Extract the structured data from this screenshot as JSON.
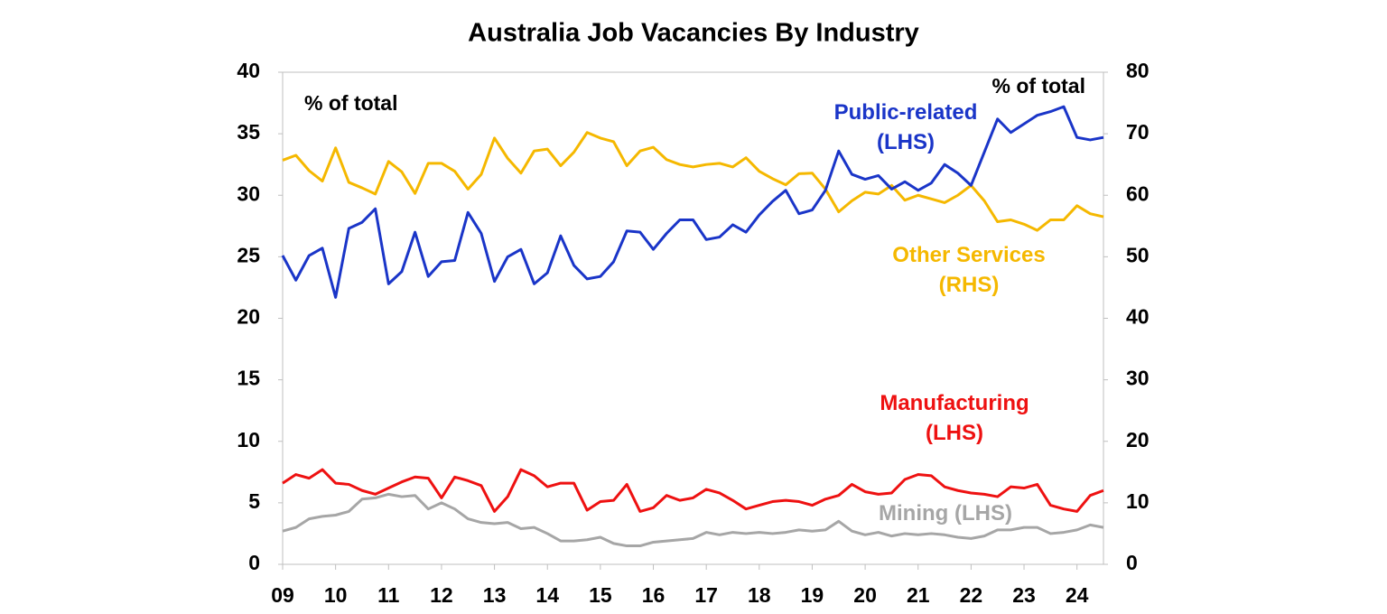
{
  "chart_data": {
    "type": "line",
    "title": "Australia Job Vacancies By Industry",
    "annotations": {
      "left_unit": "% of total",
      "right_unit": "% of total"
    },
    "x": [
      2009,
      2009.25,
      2009.5,
      2009.75,
      2010,
      2010.25,
      2010.5,
      2010.75,
      2011,
      2011.25,
      2011.5,
      2011.75,
      2012,
      2012.25,
      2012.5,
      2012.75,
      2013,
      2013.25,
      2013.5,
      2013.75,
      2014,
      2014.25,
      2014.5,
      2014.75,
      2015,
      2015.25,
      2015.5,
      2015.75,
      2016,
      2016.25,
      2016.5,
      2016.75,
      2017,
      2017.25,
      2017.5,
      2017.75,
      2018,
      2018.25,
      2018.5,
      2018.75,
      2019,
      2019.25,
      2019.5,
      2019.75,
      2020,
      2020.25,
      2020.5,
      2020.75,
      2021,
      2021.25,
      2021.5,
      2021.75,
      2022,
      2022.25,
      2022.5,
      2022.75,
      2023,
      2023.25,
      2023.5,
      2023.75,
      2024,
      2024.25,
      2024.5
    ],
    "xlim": [
      2009,
      2024.5
    ],
    "xticks": [
      {
        "value": 2009,
        "label": "09"
      },
      {
        "value": 2010,
        "label": "10"
      },
      {
        "value": 2011,
        "label": "11"
      },
      {
        "value": 2012,
        "label": "12"
      },
      {
        "value": 2013,
        "label": "13"
      },
      {
        "value": 2014,
        "label": "14"
      },
      {
        "value": 2015,
        "label": "15"
      },
      {
        "value": 2016,
        "label": "16"
      },
      {
        "value": 2017,
        "label": "17"
      },
      {
        "value": 2018,
        "label": "18"
      },
      {
        "value": 2019,
        "label": "19"
      },
      {
        "value": 2020,
        "label": "20"
      },
      {
        "value": 2021,
        "label": "21"
      },
      {
        "value": 2022,
        "label": "22"
      },
      {
        "value": 2023,
        "label": "23"
      },
      {
        "value": 2024,
        "label": "24"
      }
    ],
    "ylim": [
      0,
      40
    ],
    "yticks": [
      0,
      5,
      10,
      15,
      20,
      25,
      30,
      35,
      40
    ],
    "y2lim": [
      0,
      80
    ],
    "y2ticks": [
      0,
      10,
      20,
      30,
      40,
      50,
      60,
      70,
      80
    ],
    "series": [
      {
        "name": "Public-related (LHS)",
        "color": "#1a35c8",
        "values": [
          25.1,
          23.1,
          25.1,
          25.7,
          21.7,
          27.3,
          27.8,
          28.9,
          22.8,
          23.8,
          27.0,
          23.4,
          24.6,
          24.7,
          28.6,
          26.9,
          23.0,
          25.0,
          25.6,
          22.8,
          23.7,
          26.7,
          24.3,
          23.2,
          23.4,
          24.6,
          27.1,
          27.0,
          25.6,
          26.9,
          28.0,
          28.0,
          26.4,
          26.6,
          27.6,
          27.0,
          28.4,
          29.5,
          30.4,
          28.5,
          28.8,
          30.4,
          33.6,
          31.7,
          31.3,
          31.6,
          30.5,
          31.1,
          30.4,
          31.0,
          32.5,
          31.8,
          30.8,
          33.5,
          36.2,
          35.1,
          35.8,
          36.5,
          36.8,
          37.2,
          34.7,
          34.5,
          34.7
        ]
      },
      {
        "name": "Other Services (RHS)",
        "color": "#f5b800",
        "axis": "y2",
        "values": [
          65.7,
          66.5,
          64.0,
          62.3,
          67.7,
          62.1,
          61.2,
          60.2,
          65.5,
          63.8,
          60.3,
          65.2,
          65.2,
          63.9,
          61.0,
          63.4,
          69.3,
          66.0,
          63.6,
          67.2,
          67.5,
          64.8,
          67.0,
          70.2,
          69.3,
          68.7,
          64.8,
          67.2,
          67.8,
          65.8,
          65.0,
          64.6,
          65.0,
          65.2,
          64.6,
          66.1,
          63.9,
          62.7,
          61.7,
          63.5,
          63.6,
          61.0,
          57.3,
          59.1,
          60.5,
          60.2,
          61.6,
          59.2,
          60.0,
          59.4,
          58.8,
          60.0,
          61.6,
          59.1,
          55.7,
          56.0,
          55.3,
          54.3,
          56.0,
          56.0,
          58.3,
          57.0,
          56.5
        ]
      },
      {
        "name": "Manufacturing (LHS)",
        "color": "#ee1111",
        "values": [
          6.6,
          7.3,
          7.0,
          7.7,
          6.6,
          6.5,
          6.0,
          5.7,
          6.2,
          6.7,
          7.1,
          7.0,
          5.4,
          7.1,
          6.8,
          6.4,
          4.3,
          5.5,
          7.7,
          7.2,
          6.3,
          6.6,
          6.6,
          4.4,
          5.1,
          5.2,
          6.5,
          4.3,
          4.6,
          5.6,
          5.2,
          5.4,
          6.1,
          5.8,
          5.2,
          4.5,
          4.8,
          5.1,
          5.2,
          5.1,
          4.8,
          5.3,
          5.6,
          6.5,
          5.9,
          5.7,
          5.8,
          6.9,
          7.3,
          7.2,
          6.3,
          6.0,
          5.8,
          5.7,
          5.5,
          6.3,
          6.2,
          6.5,
          4.8,
          4.5,
          4.3,
          5.6,
          6.0
        ]
      },
      {
        "name": "Mining (LHS)",
        "color": "#a6a6a6",
        "values": [
          2.7,
          3.0,
          3.7,
          3.9,
          4.0,
          4.3,
          5.3,
          5.4,
          5.7,
          5.5,
          5.6,
          4.5,
          5.0,
          4.5,
          3.7,
          3.4,
          3.3,
          3.4,
          2.9,
          3.0,
          2.5,
          1.9,
          1.9,
          2.0,
          2.2,
          1.7,
          1.5,
          1.5,
          1.8,
          1.9,
          2.0,
          2.1,
          2.6,
          2.4,
          2.6,
          2.5,
          2.6,
          2.5,
          2.6,
          2.8,
          2.7,
          2.8,
          3.5,
          2.7,
          2.4,
          2.6,
          2.3,
          2.5,
          2.4,
          2.5,
          2.4,
          2.2,
          2.1,
          2.3,
          2.8,
          2.8,
          3.0,
          3.0,
          2.5,
          2.6,
          2.8,
          3.2,
          3.0
        ]
      }
    ]
  }
}
